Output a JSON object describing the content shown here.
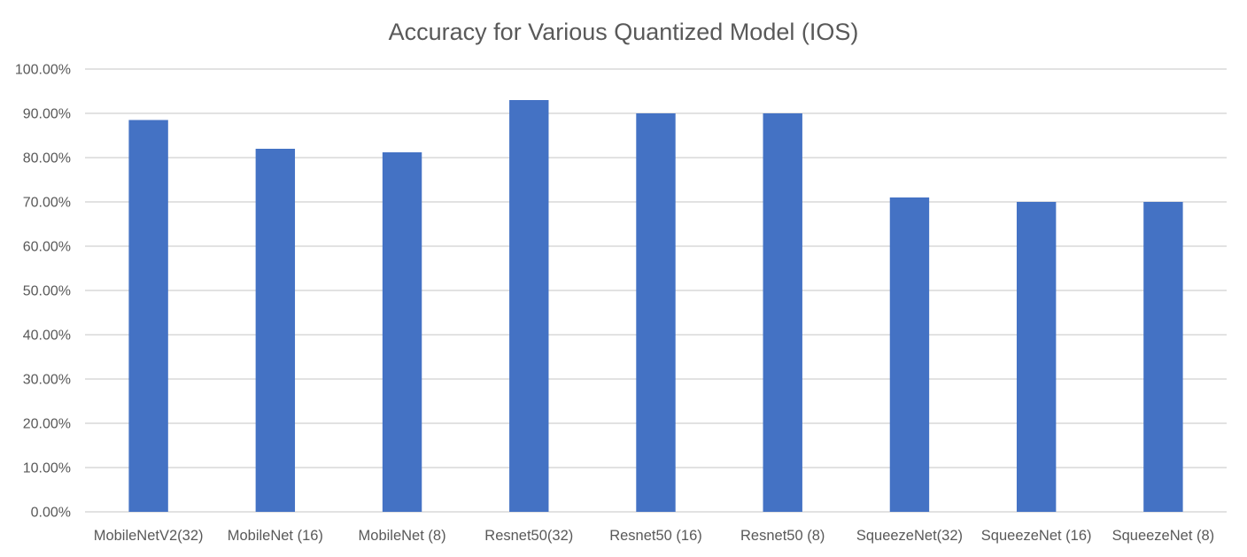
{
  "chart_data": {
    "type": "bar",
    "title": "Accuracy for Various Quantized Model (IOS)",
    "xlabel": "",
    "ylabel": "",
    "categories": [
      "MobileNetV2(32)",
      "MobileNet (16)",
      "MobileNet (8)",
      "Resnet50(32)",
      "Resnet50 (16)",
      "Resnet50 (8)",
      "SqueezeNet(32)",
      "SqueezeNet (16)",
      "SqueezeNet (8)"
    ],
    "values": [
      0.885,
      0.82,
      0.812,
      0.93,
      0.9,
      0.9,
      0.71,
      0.7,
      0.7
    ],
    "ylim": [
      0,
      1.0
    ],
    "yticks": [
      "0.00%",
      "10.00%",
      "20.00%",
      "30.00%",
      "40.00%",
      "50.00%",
      "60.00%",
      "70.00%",
      "80.00%",
      "90.00%",
      "100.00%"
    ],
    "grid": true,
    "legend": "none",
    "colors": {
      "bar": "#4472C4",
      "grid": "#D9D9D9",
      "text": "#595959"
    }
  }
}
